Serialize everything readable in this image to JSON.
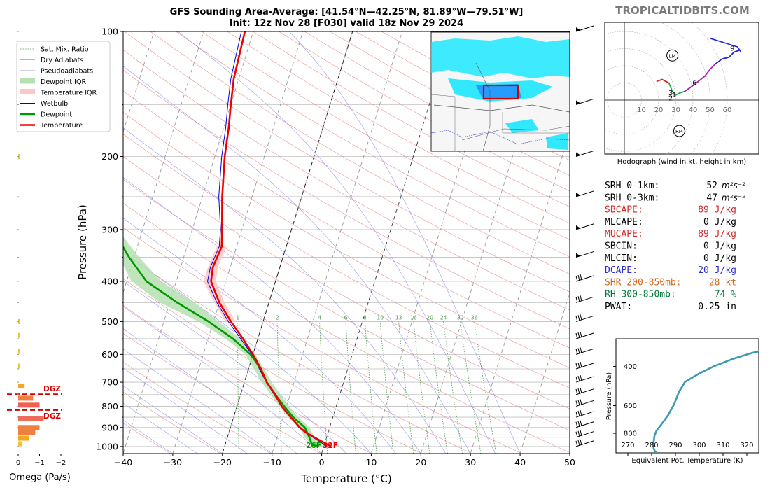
{
  "header": {
    "title_line1": "GFS Sounding Area-Average: [41.54°N—42.25°N, 81.89°W—79.51°W]",
    "title_line2": "Init: 12z Nov 28 [F030] valid 18z Nov 29 2024",
    "brand": "TROPICALTIDBITS.COM"
  },
  "chart_data": [
    {
      "type": "line",
      "name": "skewt",
      "xlabel": "Temperature (°C)",
      "ylabel": "Pressure (hPa)",
      "xlim": [
        -40,
        50
      ],
      "ylim": [
        1040,
        100
      ],
      "y_scale": "log",
      "skew": true,
      "x_ticks": [
        "−40",
        "−30",
        "−20",
        "−10",
        "0",
        "10",
        "20",
        "30",
        "40",
        "50"
      ],
      "y_ticks": [
        "100",
        "200",
        "300",
        "400",
        "500",
        "600",
        "700",
        "800",
        "900",
        "1000"
      ],
      "legend_position": "top-left",
      "legend": [
        {
          "label": "Sat. Mix. Ratio",
          "color": "#4d9e4d",
          "style": "dotted"
        },
        {
          "label": "Dry Adiabats",
          "color": "#e08080",
          "style": "solid"
        },
        {
          "label": "Pseudoadiabats",
          "color": "#8080e0",
          "style": "solid"
        },
        {
          "label": "Dewpoint IQR",
          "color": "#b5e0b0",
          "style": "patch"
        },
        {
          "label": "Temperature IQR",
          "color": "#ffc6c6",
          "style": "patch"
        },
        {
          "label": "Wetbulb",
          "color": "#0000dd",
          "style": "thin"
        },
        {
          "label": "Dewpoint",
          "color": "#009900",
          "style": "thick"
        },
        {
          "label": "Temperature",
          "color": "#ee0000",
          "style": "thick"
        }
      ],
      "series": [
        {
          "name": "Temperature",
          "color": "#ee0000",
          "points": [
            [
              1000,
              1.5
            ],
            [
              975,
              -0.5
            ],
            [
              950,
              -2.5
            ],
            [
              925,
              -4.5
            ],
            [
              900,
              -6
            ],
            [
              850,
              -8.5
            ],
            [
              800,
              -11
            ],
            [
              750,
              -13
            ],
            [
              700,
              -15.5
            ],
            [
              650,
              -17.5
            ],
            [
              600,
              -20
            ],
            [
              550,
              -23
            ],
            [
              500,
              -26.5
            ],
            [
              450,
              -30
            ],
            [
              400,
              -33
            ],
            [
              370,
              -33.5
            ],
            [
              330,
              -33
            ],
            [
              300,
              -34
            ],
            [
              250,
              -36
            ],
            [
              200,
              -38
            ],
            [
              170,
              -39
            ],
            [
              150,
              -40
            ],
            [
              130,
              -41
            ],
            [
              100,
              -41.7
            ]
          ]
        },
        {
          "name": "Dewpoint",
          "color": "#009900",
          "points": [
            [
              1000,
              -1
            ],
            [
              990,
              -2.5
            ],
            [
              950,
              -3.5
            ],
            [
              900,
              -5
            ],
            [
              850,
              -8
            ],
            [
              800,
              -10.5
            ],
            [
              750,
              -13
            ],
            [
              700,
              -15.5
            ],
            [
              650,
              -17.5
            ],
            [
              600,
              -20.5
            ],
            [
              550,
              -25
            ],
            [
              500,
              -31
            ],
            [
              450,
              -38.5
            ],
            [
              400,
              -46
            ],
            [
              350,
              -51
            ],
            [
              300,
              -56
            ],
            [
              250,
              -58
            ],
            [
              200,
              -64
            ],
            [
              150,
              -70
            ],
            [
              100,
              -75
            ]
          ]
        },
        {
          "name": "Wetbulb",
          "color": "#0000dd",
          "points": [
            [
              1000,
              0.5
            ],
            [
              975,
              -1
            ],
            [
              950,
              -2.8
            ],
            [
              925,
              -4.7
            ],
            [
              900,
              -6.2
            ],
            [
              850,
              -8.5
            ],
            [
              800,
              -11
            ],
            [
              700,
              -15.6
            ],
            [
              600,
              -20.2
            ],
            [
              500,
              -27
            ],
            [
              450,
              -30.5
            ],
            [
              400,
              -33.7
            ],
            [
              370,
              -34
            ],
            [
              330,
              -33.5
            ],
            [
              300,
              -34.3
            ],
            [
              250,
              -36.7
            ],
            [
              200,
              -38.6
            ],
            [
              170,
              -39.6
            ],
            [
              150,
              -40.6
            ],
            [
              130,
              -41.6
            ],
            [
              100,
              -42.4
            ]
          ]
        }
      ],
      "dewpoint_iqr": [
        [
          1000,
          -1.8,
          -0.2
        ],
        [
          950,
          -4.5,
          -2.5
        ],
        [
          900,
          -6,
          -4
        ],
        [
          850,
          -9,
          -7
        ],
        [
          800,
          -11.5,
          -9.5
        ],
        [
          700,
          -16.5,
          -14.5
        ],
        [
          600,
          -21.5,
          -19.5
        ],
        [
          550,
          -26.5,
          -23.5
        ],
        [
          500,
          -33,
          -29
        ],
        [
          450,
          -42,
          -35
        ],
        [
          400,
          -49,
          -43
        ],
        [
          350,
          -53,
          -49
        ],
        [
          300,
          -57,
          -55
        ]
      ],
      "temperature_iqr": [
        [
          500,
          -27.5,
          -25.5
        ],
        [
          450,
          -31,
          -29
        ],
        [
          400,
          -34.5,
          -32
        ],
        [
          370,
          -34.5,
          -32.5
        ],
        [
          330,
          -34,
          -32
        ]
      ],
      "mixing_ratio_labels": [
        "1",
        "2",
        "4",
        "6",
        "8",
        "10",
        "13",
        "16",
        "20",
        "24",
        "30",
        "36"
      ],
      "mixing_ratio_values": [
        1,
        2,
        4,
        6,
        8,
        10,
        13,
        16,
        20,
        24,
        30,
        36
      ],
      "surface_labels": [
        {
          "text": "26F",
          "color": "#009900"
        },
        {
          "text": "32F",
          "color": "#ee0000"
        }
      ],
      "wind_barbs_pressures": [
        100,
        150,
        200,
        250,
        300,
        350,
        400,
        450,
        500,
        550,
        600,
        650,
        700,
        750,
        800,
        850,
        900,
        950,
        1000
      ]
    },
    {
      "type": "bar",
      "name": "omega",
      "xlabel": "Omega (Pa/s)",
      "x_ticks": [
        "0",
        "−1",
        "−2"
      ],
      "xlim": [
        0.3,
        -2
      ],
      "dgz_label": "DGZ",
      "dgz_pressures": [
        760,
        830
      ],
      "bars": [
        {
          "p": 200,
          "v": -0.05,
          "color": "#f2c230"
        },
        {
          "p": 500,
          "v": -0.05,
          "color": "#f2c230"
        },
        {
          "p": 540,
          "v": -0.05,
          "color": "#f2c230"
        },
        {
          "p": 590,
          "v": -0.08,
          "color": "#f2c230"
        },
        {
          "p": 640,
          "v": -0.1,
          "color": "#f2c230"
        },
        {
          "p": 715,
          "v": -0.3,
          "color": "#f5a623"
        },
        {
          "p": 765,
          "v": -0.7,
          "color": "#f08040"
        },
        {
          "p": 795,
          "v": -1.0,
          "color": "#f06050"
        },
        {
          "p": 855,
          "v": -1.2,
          "color": "#ee6a5a"
        },
        {
          "p": 900,
          "v": -1.0,
          "color": "#f08040"
        },
        {
          "p": 925,
          "v": -0.8,
          "color": "#f08040"
        },
        {
          "p": 955,
          "v": -0.5,
          "color": "#f5a623"
        },
        {
          "p": 985,
          "v": -0.2,
          "color": "#f2c230"
        }
      ]
    },
    {
      "type": "line",
      "name": "hodograph",
      "xlabel": "Hodograph (wind in kt, height in km)",
      "ring_labels": [
        "10",
        "20",
        "30",
        "40",
        "50",
        "60"
      ],
      "points": [
        [
          19,
          11
        ],
        [
          22,
          12
        ],
        [
          24,
          11
        ],
        [
          26,
          10
        ],
        [
          28,
          5
        ],
        [
          30,
          3
        ],
        [
          32,
          4
        ],
        [
          35,
          5
        ],
        [
          38,
          7
        ],
        [
          42,
          10
        ],
        [
          47,
          14
        ],
        [
          50,
          18
        ],
        [
          53,
          21
        ],
        [
          57,
          24
        ],
        [
          61,
          25
        ],
        [
          64,
          28
        ],
        [
          67,
          29
        ]
      ],
      "tail": [
        [
          50,
          36
        ],
        [
          66,
          31
        ],
        [
          68,
          28
        ]
      ],
      "height_labels": [
        {
          "text": "3",
          "u": 27,
          "v": 4
        },
        {
          "text": "1",
          "u": 29,
          "v": 3
        },
        {
          "text": "2",
          "u": 27,
          "v": 1
        },
        {
          "text": "6",
          "u": 41,
          "v": 10
        },
        {
          "text": "9",
          "u": 63,
          "v": 30
        }
      ],
      "markers": [
        {
          "label": "LM",
          "u": 28,
          "v": 26
        },
        {
          "label": "RM",
          "u": 32,
          "v": -18
        }
      ]
    },
    {
      "type": "line",
      "name": "theta_e",
      "xlabel": "Equivalent Pot. Temperature (K)",
      "ylabel": "Pressure (hPa)",
      "xlim": [
        265,
        325
      ],
      "ylim": [
        980,
        300
      ],
      "x_ticks": [
        "270",
        "280",
        "290",
        "300",
        "310",
        "320"
      ],
      "y_ticks": [
        "400",
        "600",
        "800"
      ],
      "color": "#3a9ab0",
      "points": [
        [
          980,
          282
        ],
        [
          960,
          281.3
        ],
        [
          930,
          280.8
        ],
        [
          880,
          280.8
        ],
        [
          820,
          281.2
        ],
        [
          780,
          282
        ],
        [
          720,
          284.5
        ],
        [
          660,
          287
        ],
        [
          590,
          289.5
        ],
        [
          520,
          291.5
        ],
        [
          470,
          294
        ],
        [
          430,
          300
        ],
        [
          400,
          306
        ],
        [
          370,
          314
        ],
        [
          348,
          322
        ],
        [
          340,
          326
        ]
      ]
    }
  ],
  "indices": [
    {
      "label": "SRH 0-1km:",
      "value": "52",
      "unit": "m²s⁻²",
      "color": "#000000"
    },
    {
      "label": "SRH 0-3km:",
      "value": "47",
      "unit": "m²s⁻²",
      "color": "#000000"
    },
    {
      "label": "SBCAPE:",
      "value": "89 J/kg",
      "unit": "",
      "color": "#d42a2a"
    },
    {
      "label": "MLCAPE:",
      "value": "0 J/kg",
      "unit": "",
      "color": "#000000"
    },
    {
      "label": "MUCAPE:",
      "value": "89 J/kg",
      "unit": "",
      "color": "#d42a2a"
    },
    {
      "label": "SBCIN:",
      "value": "0 J/kg",
      "unit": "",
      "color": "#000000"
    },
    {
      "label": "MLCIN:",
      "value": "0 J/kg",
      "unit": "",
      "color": "#000000"
    },
    {
      "label": "DCAPE:",
      "value": "20 J/kg",
      "unit": "",
      "color": "#2a2ad4"
    },
    {
      "label": "SHR 200-850mb:",
      "value": "28 kt",
      "unit": "",
      "color": "#d2691e"
    },
    {
      "label": "RH 300-850mb:",
      "value": "74 %",
      "unit": "",
      "color": "#007a3d"
    },
    {
      "label": "PWAT:",
      "value": "0.25 in",
      "unit": "",
      "color": "#000000"
    }
  ]
}
